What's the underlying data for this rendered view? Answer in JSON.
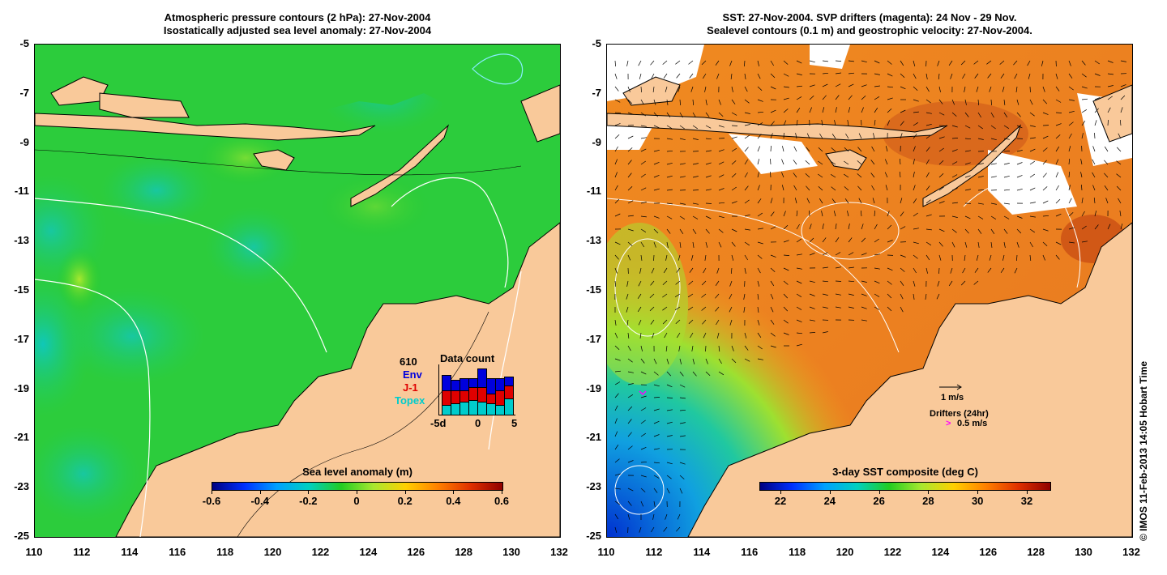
{
  "left_panel": {
    "title_line1": "Atmospheric pressure contours (2 hPa): 27-Nov-2004",
    "title_line2": "Isostatically adjusted sea level anomaly: 27-Nov-2004",
    "colorbar": {
      "title": "Sea level anomaly (m)",
      "labels": [
        "-0.6",
        "-0.4",
        "-0.2",
        "0",
        "0.2",
        "0.4",
        "0.6"
      ]
    },
    "data_count": {
      "title": "Data count",
      "total": "610",
      "series": [
        {
          "name": "Env",
          "color": "#0000dd"
        },
        {
          "name": "J-1",
          "color": "#e00000"
        },
        {
          "name": "Topex",
          "color": "#00cccc"
        }
      ],
      "x_labels": [
        "-5d",
        "0",
        "5"
      ],
      "bars": [
        {
          "topex": 12,
          "j1": 18,
          "env": 18
        },
        {
          "topex": 14,
          "j1": 16,
          "env": 12
        },
        {
          "topex": 16,
          "j1": 14,
          "env": 14
        },
        {
          "topex": 18,
          "j1": 16,
          "env": 10
        },
        {
          "topex": 16,
          "j1": 18,
          "env": 22
        },
        {
          "topex": 14,
          "j1": 12,
          "env": 18
        },
        {
          "topex": 12,
          "j1": 18,
          "env": 14
        },
        {
          "topex": 20,
          "j1": 16,
          "env": 10
        }
      ]
    }
  },
  "right_panel": {
    "title_line1": "SST: 27-Nov-2004. SVP drifters (magenta): 24 Nov - 29 Nov.",
    "title_line2": "Sealevel contours (0.1 m) and geostrophic velocity: 27-Nov-2004.",
    "colorbar": {
      "title": "3-day SST composite (deg C)",
      "labels": [
        "22",
        "24",
        "26",
        "28",
        "30",
        "32"
      ]
    },
    "velocity_scale": "1 m/s",
    "drifters_label": "Drifters (24hr)",
    "drifters_speed": "0.5 m/s"
  },
  "axes": {
    "y_labels": [
      "-5",
      "-7",
      "-9",
      "-11",
      "-13",
      "-15",
      "-17",
      "-19",
      "-21",
      "-23",
      "-25"
    ],
    "x_labels": [
      "110",
      "112",
      "114",
      "116",
      "118",
      "120",
      "122",
      "124",
      "126",
      "128",
      "130",
      "132"
    ]
  },
  "credit": "© IMOS 11-Feb-2013 14:05 Hobart Time",
  "colors": {
    "land": "#f9c99a",
    "ocean_green": "#22cc22",
    "sst_orange": "#f08a20"
  }
}
